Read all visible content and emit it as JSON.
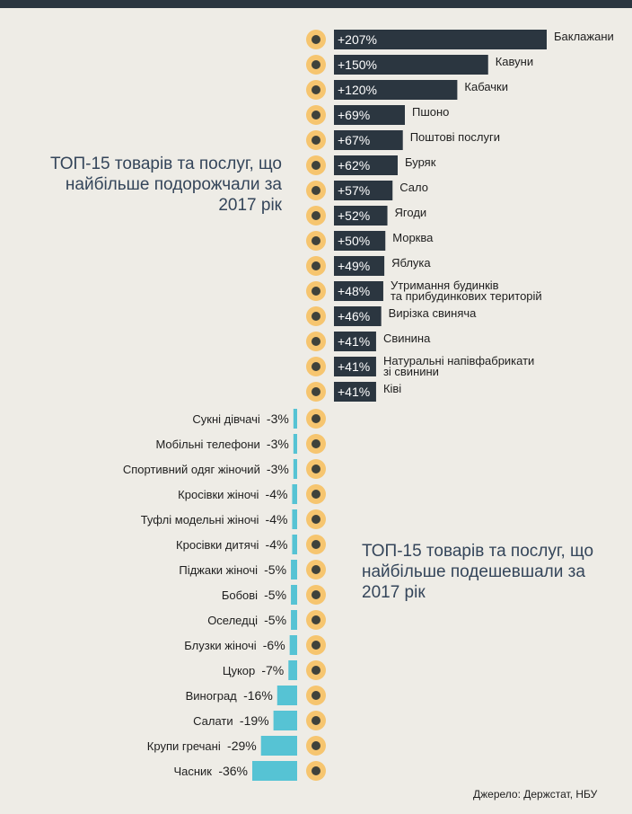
{
  "titles": {
    "up": "ТОП-15 товарів та послуг, що найбільше подорожчали за 2017 рік",
    "down": "ТОП-15 товарів та послуг, що найбільше подешевшали за 2017 рік"
  },
  "source": "Джерело: Держстат, НБУ",
  "colors": {
    "up_bar": "#2b3640",
    "down_bar": "#56c3d4",
    "icon_circle": "#f6c56f",
    "headline": "#34455a",
    "background": "#eeece6"
  },
  "chart_data": [
    {
      "type": "bar",
      "title": "ТОП-15 товарів та послуг, що найбільше подорожчали за 2017 рік",
      "unit": "%",
      "categories": [
        "Баклажани",
        "Кавуни",
        "Кабачки",
        "Пшоно",
        "Поштові послуги",
        "Буряк",
        "Сало",
        "Ягоди",
        "Морква",
        "Яблука",
        "Утримання будинків та прибудинкових територій",
        "Вирізка свиняча",
        "Свинина",
        "Натуральні напівфабрикати зі свинини",
        "Ківі"
      ],
      "label_lines": [
        [
          "Баклажани"
        ],
        [
          "Кавуни"
        ],
        [
          "Кабачки"
        ],
        [
          "Пшоно"
        ],
        [
          "Поштові послуги"
        ],
        [
          "Буряк"
        ],
        [
          "Сало"
        ],
        [
          "Ягоди"
        ],
        [
          "Морква"
        ],
        [
          "Яблука"
        ],
        [
          "Утримання будинків",
          "та прибудинкових територій"
        ],
        [
          "Вирізка свиняча"
        ],
        [
          "Свинина"
        ],
        [
          "Натуральні напівфабрикати",
          "зі свинини"
        ],
        [
          "Ківі"
        ]
      ],
      "values": [
        207,
        150,
        120,
        69,
        67,
        62,
        57,
        52,
        50,
        49,
        48,
        46,
        41,
        41,
        41
      ],
      "value_labels": [
        "+207%",
        "+150%",
        "+120%",
        "+69%",
        "+67%",
        "+62%",
        "+57%",
        "+52%",
        "+50%",
        "+49%",
        "+48%",
        "+46%",
        "+41%",
        "+41%",
        "+41%"
      ],
      "icons": [
        "eggplant-icon",
        "watermelon-icon",
        "zucchini-icon",
        "millet-jar-icon",
        "envelope-icon",
        "beet-icon",
        "lard-icon",
        "berries-icon",
        "carrot-icon",
        "apple-icon",
        "building-icon",
        "tenderloin-icon",
        "pig-icon",
        "ham-icon",
        "kiwi-icon"
      ]
    },
    {
      "type": "bar",
      "title": "ТОП-15 товарів та послуг, що найбільше подешевшали за 2017 рік",
      "unit": "%",
      "categories": [
        "Сукні дівчачі",
        "Мобільні телефони",
        "Спортивний одяг жіночий",
        "Кросівки жіночі",
        "Туфлі модельні жіночі",
        "Кросівки дитячі",
        "Піджаки жіночі",
        "Бобові",
        "Оселедці",
        "Блузки жіночі",
        "Цукор",
        "Виноград",
        "Салати",
        "Крупи гречані",
        "Часник"
      ],
      "values": [
        -3,
        -3,
        -3,
        -4,
        -4,
        -4,
        -5,
        -5,
        -5,
        -6,
        -7,
        -16,
        -19,
        -29,
        -36
      ],
      "value_labels": [
        "-3%",
        "-3%",
        "-3%",
        "-4%",
        "-4%",
        "-4%",
        "-5%",
        "-5%",
        "-5%",
        "-6%",
        "-7%",
        "-16%",
        "-19%",
        "-29%",
        "-36%"
      ],
      "icons": [
        "dress-icon",
        "mobile-phone-icon",
        "sportswear-icon",
        "sneaker-icon",
        "high-heel-icon",
        "kids-sneaker-icon",
        "jacket-icon",
        "beans-icon",
        "herring-icon",
        "blouse-icon",
        "sugar-icon",
        "grapes-icon",
        "salad-icon",
        "buckwheat-icon",
        "garlic-icon"
      ]
    }
  ]
}
